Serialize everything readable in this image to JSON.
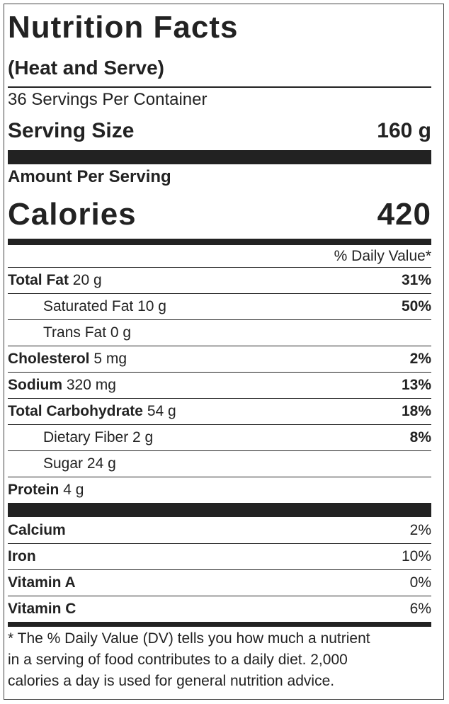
{
  "header": {
    "title": "Nutrition Facts",
    "subtitle": "(Heat and Serve)"
  },
  "servings_per_container": "36 Servings Per Container",
  "serving_size": {
    "label": "Serving Size",
    "value": "160 g"
  },
  "amount_per_serving": "Amount Per Serving",
  "calories": {
    "label": "Calories",
    "value": "420"
  },
  "daily_value_header": "% Daily Value*",
  "nutrients": [
    {
      "name": "Total Fat",
      "amount": "20 g",
      "dv": "31%",
      "indent": false
    },
    {
      "name": "Saturated Fat",
      "amount": "10 g",
      "dv": "50%",
      "indent": true
    },
    {
      "name": "Trans Fat",
      "amount": "0 g",
      "dv": null,
      "indent": true
    },
    {
      "name": "Cholesterol",
      "amount": "5 mg",
      "dv": "2%",
      "indent": false
    },
    {
      "name": "Sodium",
      "amount": "320 mg",
      "dv": "13%",
      "indent": false
    },
    {
      "name": "Total Carbohydrate",
      "amount": "54 g",
      "dv": "18%",
      "indent": false
    },
    {
      "name": "Dietary Fiber",
      "amount": "2 g",
      "dv": "8%",
      "indent": true
    },
    {
      "name": "Sugar",
      "amount": "24 g",
      "dv": null,
      "indent": true
    },
    {
      "name": "Protein",
      "amount": "4 g",
      "dv": null,
      "indent": false
    }
  ],
  "vitamins": [
    {
      "name": "Calcium",
      "dv": "2%"
    },
    {
      "name": "Iron",
      "dv": "10%"
    },
    {
      "name": "Vitamin A",
      "dv": "0%"
    },
    {
      "name": "Vitamin C",
      "dv": "6%"
    }
  ],
  "footnote": [
    "* The % Daily Value (DV) tells you how much a nutrient",
    "in a serving of food contributes to a daily diet. 2,000",
    "calories a day is used for general nutrition advice."
  ]
}
